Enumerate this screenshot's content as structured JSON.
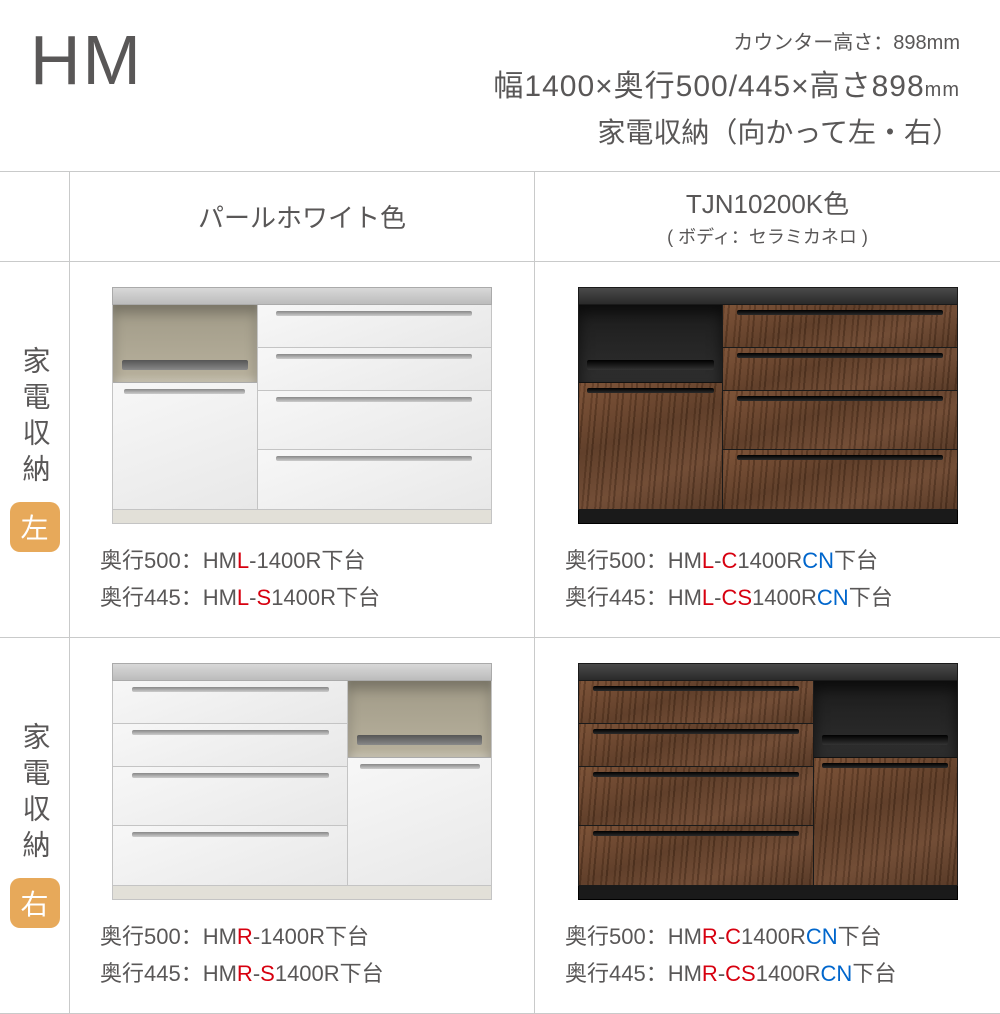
{
  "header": {
    "logo": "HM",
    "counter_height": "カウンター高さ：898mm",
    "dimensions_main": "幅1400×奥行500/445×高さ898",
    "dimensions_unit": "mm",
    "subtitle": "家電収納（向かって左・右）"
  },
  "columns": {
    "col1": {
      "title": "パールホワイト色",
      "sub": ""
    },
    "col2": {
      "title": "TJN10200K色",
      "sub": "( ボディ：セラミカネロ )"
    }
  },
  "rows": {
    "left": {
      "label": "家電収納",
      "badge": "左",
      "badge_color": "#e7a95a"
    },
    "right": {
      "label": "家電収納",
      "badge": "右",
      "badge_color": "#e7a95a"
    }
  },
  "products": {
    "white_left": {
      "d500_prefix": "奥行500：HM",
      "d500_a": "L",
      "d500_mid": "-1400R下台",
      "d445_prefix": "奥行445：HM",
      "d445_a": "L",
      "d445_mid": "-",
      "d445_b": "S",
      "d445_suffix": "1400R下台"
    },
    "dark_left": {
      "d500_prefix": "奥行500：HM",
      "d500_a": "L",
      "d500_mid1": "-",
      "d500_b": "C",
      "d500_mid2": "1400R",
      "d500_c": "CN",
      "d500_suffix": "下台",
      "d445_prefix": "奥行445：HM",
      "d445_a": "L",
      "d445_mid1": "-",
      "d445_b": "CS",
      "d445_mid2": "1400R",
      "d445_c": "CN",
      "d445_suffix": "下台"
    },
    "white_right": {
      "d500_prefix": "奥行500：HM",
      "d500_a": "R",
      "d500_mid": "-1400R下台",
      "d445_prefix": "奥行445：HM",
      "d445_a": "R",
      "d445_mid": "-",
      "d445_b": "S",
      "d445_suffix": "1400R下台"
    },
    "dark_right": {
      "d500_prefix": "奥行500：HM",
      "d500_a": "R",
      "d500_mid1": "-",
      "d500_b": "C",
      "d500_mid2": "1400R",
      "d500_c": "CN",
      "d500_suffix": "下台",
      "d445_prefix": "奥行445：HM",
      "d445_a": "R",
      "d445_mid1": "-",
      "d445_b": "CS",
      "d445_mid2": "1400R",
      "d445_c": "CN",
      "d445_suffix": "下台"
    }
  },
  "colors": {
    "text": "#595757",
    "highlight_red": "#d7000f",
    "highlight_blue": "#0066cc",
    "border": "#c9caca"
  }
}
